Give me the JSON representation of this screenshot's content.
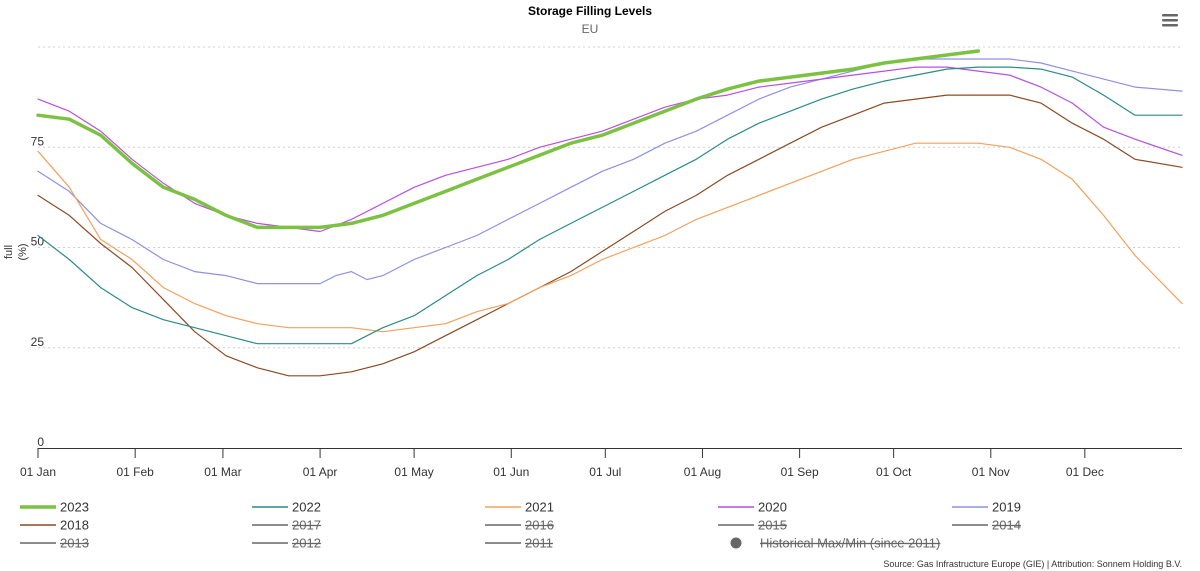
{
  "chart_data": {
    "type": "line",
    "title": "Storage Filling Levels",
    "subtitle": "EU",
    "ylabel": "full (%)",
    "ylabel_parts": [
      "full",
      "(%)"
    ],
    "ylim": [
      0,
      100
    ],
    "yticks": [
      0,
      25,
      50,
      75
    ],
    "xlim": [
      0,
      365
    ],
    "xticks": [
      {
        "label": "01 Jan",
        "day": 0
      },
      {
        "label": "01 Feb",
        "day": 31
      },
      {
        "label": "01 Mar",
        "day": 59
      },
      {
        "label": "01 Apr",
        "day": 90
      },
      {
        "label": "01 May",
        "day": 120
      },
      {
        "label": "01 Jun",
        "day": 151
      },
      {
        "label": "01 Jul",
        "day": 181
      },
      {
        "label": "01 Aug",
        "day": 212
      },
      {
        "label": "01 Sep",
        "day": 243
      },
      {
        "label": "01 Oct",
        "day": 273
      },
      {
        "label": "01 Nov",
        "day": 304
      },
      {
        "label": "01 Dec",
        "day": 334
      }
    ],
    "series": [
      {
        "name": "2023",
        "color": "#7cc242",
        "width": 3.5,
        "visible": true,
        "x": [
          0,
          10,
          20,
          30,
          40,
          50,
          60,
          70,
          80,
          90,
          100,
          110,
          120,
          130,
          140,
          150,
          160,
          170,
          180,
          190,
          200,
          210,
          220,
          230,
          240,
          250,
          260,
          270,
          280,
          290,
          300
        ],
        "y": [
          83,
          82,
          78,
          71,
          65,
          62,
          58,
          55,
          55,
          55,
          56,
          58,
          61,
          64,
          67,
          70,
          73,
          76,
          78,
          81,
          84,
          87,
          89.5,
          91.5,
          92.5,
          93.5,
          94.5,
          96,
          97,
          98,
          99
        ]
      },
      {
        "name": "2022",
        "color": "#2b8a8a",
        "width": 1.2,
        "visible": true,
        "x": [
          0,
          10,
          20,
          30,
          40,
          50,
          60,
          70,
          80,
          90,
          100,
          110,
          120,
          130,
          140,
          150,
          160,
          170,
          180,
          190,
          200,
          210,
          220,
          230,
          240,
          250,
          260,
          270,
          280,
          290,
          300,
          310,
          320,
          330,
          340,
          350,
          365
        ],
        "y": [
          53,
          47,
          40,
          35,
          32,
          30,
          28,
          26,
          26,
          26,
          26,
          30,
          33,
          38,
          43,
          47,
          52,
          56,
          60,
          64,
          68,
          72,
          77,
          81,
          84,
          87,
          89.5,
          91.5,
          93,
          94.5,
          95,
          95,
          94.5,
          92.5,
          88,
          83,
          83
        ]
      },
      {
        "name": "2021",
        "color": "#f5a05a",
        "width": 1.2,
        "visible": true,
        "x": [
          0,
          10,
          20,
          30,
          40,
          50,
          60,
          70,
          80,
          90,
          100,
          110,
          120,
          130,
          140,
          150,
          160,
          170,
          180,
          190,
          200,
          210,
          220,
          230,
          240,
          250,
          260,
          270,
          280,
          290,
          300,
          310,
          320,
          330,
          340,
          350,
          365
        ],
        "y": [
          74,
          65,
          52,
          47,
          40,
          36,
          33,
          31,
          30,
          30,
          30,
          29,
          30,
          31,
          34,
          36,
          40,
          43,
          47,
          50,
          53,
          57,
          60,
          63,
          66,
          69,
          72,
          74,
          76,
          76,
          76,
          75,
          72,
          67,
          58,
          48,
          36
        ]
      },
      {
        "name": "2020",
        "color": "#b84fe0",
        "width": 1.2,
        "visible": true,
        "x": [
          0,
          10,
          20,
          30,
          40,
          50,
          60,
          70,
          80,
          90,
          100,
          110,
          120,
          130,
          140,
          150,
          160,
          170,
          180,
          190,
          200,
          210,
          220,
          230,
          240,
          250,
          260,
          270,
          280,
          290,
          300,
          310,
          320,
          330,
          340,
          350,
          365
        ],
        "y": [
          87,
          84,
          79,
          72,
          66,
          61,
          58,
          56,
          55,
          54,
          57,
          61,
          65,
          68,
          70,
          72,
          75,
          77,
          79,
          82,
          85,
          87,
          88,
          90,
          91,
          92,
          93,
          94,
          95,
          95,
          94,
          93,
          90,
          86,
          80,
          77,
          73
        ]
      },
      {
        "name": "2019",
        "color": "#8f8fe6",
        "width": 1.2,
        "visible": true,
        "x": [
          0,
          10,
          20,
          30,
          40,
          50,
          60,
          70,
          80,
          90,
          95,
          100,
          105,
          110,
          120,
          130,
          140,
          150,
          160,
          170,
          180,
          190,
          200,
          210,
          220,
          230,
          240,
          250,
          260,
          270,
          280,
          290,
          300,
          310,
          320,
          330,
          340,
          350,
          365
        ],
        "y": [
          69,
          64,
          56,
          52,
          47,
          44,
          43,
          41,
          41,
          41,
          43,
          44,
          42,
          43,
          47,
          50,
          53,
          57,
          61,
          65,
          69,
          72,
          76,
          79,
          83,
          87,
          90,
          92,
          94,
          96,
          97,
          97,
          97,
          97,
          96,
          94,
          92,
          90,
          89
        ]
      },
      {
        "name": "2018",
        "color": "#8b4a22",
        "width": 1.2,
        "visible": true,
        "x": [
          0,
          10,
          20,
          30,
          40,
          50,
          60,
          70,
          80,
          90,
          100,
          110,
          120,
          130,
          140,
          150,
          160,
          170,
          180,
          190,
          200,
          210,
          220,
          230,
          240,
          250,
          260,
          270,
          280,
          290,
          300,
          310,
          320,
          330,
          340,
          350,
          365
        ],
        "y": [
          63,
          58,
          51,
          45,
          37,
          29,
          23,
          20,
          18,
          18,
          19,
          21,
          24,
          28,
          32,
          36,
          40,
          44,
          49,
          54,
          59,
          63,
          68,
          72,
          76,
          80,
          83,
          86,
          87,
          88,
          88,
          88,
          86,
          81,
          77,
          72,
          70
        ]
      },
      {
        "name": "2017",
        "color": "#666666",
        "width": 1.2,
        "visible": false
      },
      {
        "name": "2016",
        "color": "#666666",
        "width": 1.2,
        "visible": false
      },
      {
        "name": "2015",
        "color": "#666666",
        "width": 1.2,
        "visible": false
      },
      {
        "name": "2014",
        "color": "#666666",
        "width": 1.2,
        "visible": false
      },
      {
        "name": "2013",
        "color": "#666666",
        "width": 1.2,
        "visible": false
      },
      {
        "name": "2012",
        "color": "#666666",
        "width": 1.2,
        "visible": false
      },
      {
        "name": "2011",
        "color": "#666666",
        "width": 1.2,
        "visible": false
      }
    ],
    "range_legend": {
      "name": "Historical Max/Min (since 2011)",
      "color": "#666666",
      "visible": false
    },
    "source": "Source: Gas Infrastructure Europe (GIE) | Attribution: Sonnem Holding B.V."
  }
}
